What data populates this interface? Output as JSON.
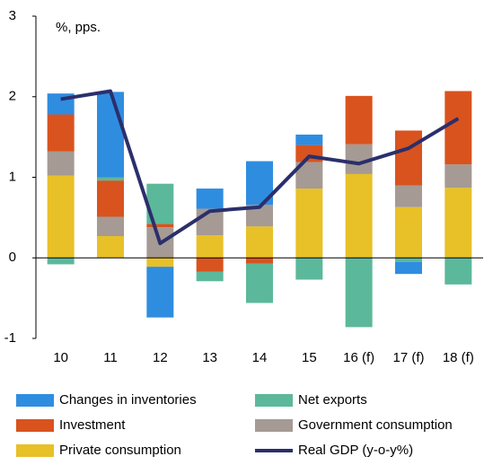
{
  "chart_data": {
    "type": "bar",
    "annotation": "%, pps.",
    "categories": [
      "10",
      "11",
      "12",
      "13",
      "14",
      "15",
      "16 (f)",
      "17 (f)",
      "18 (f)"
    ],
    "series": [
      {
        "name": "Private consumption",
        "color": "#e8c027",
        "values": [
          1.02,
          0.27,
          -0.11,
          0.28,
          0.39,
          0.86,
          1.04,
          0.63,
          0.87
        ]
      },
      {
        "name": "Government consumption",
        "color": "#a59a94",
        "values": [
          0.3,
          0.24,
          0.38,
          0.33,
          0.27,
          0.33,
          0.37,
          0.27,
          0.29
        ]
      },
      {
        "name": "Investment",
        "color": "#d9531e",
        "values": [
          0.46,
          0.45,
          0.04,
          -0.17,
          -0.07,
          0.21,
          0.6,
          0.68,
          0.91
        ]
      },
      {
        "name": "Net exports",
        "color": "#5cb89a",
        "values": [
          -0.08,
          0.04,
          0.5,
          -0.12,
          -0.49,
          -0.27,
          -0.86,
          -0.05,
          -0.33
        ]
      },
      {
        "name": "Changes in inventories",
        "color": "#2f8de0",
        "values": [
          0.26,
          1.06,
          -0.63,
          0.25,
          0.54,
          0.13,
          0.0,
          -0.15,
          0.0
        ]
      },
      {
        "name": "Real GDP (y-o-y%)",
        "color": "#2b2f6b",
        "type": "line",
        "values": [
          1.97,
          2.07,
          0.18,
          0.58,
          0.63,
          1.26,
          1.17,
          1.36,
          1.73
        ]
      }
    ],
    "ylim": [
      -1,
      3
    ],
    "yticks": [
      -1,
      0,
      1,
      2,
      3
    ]
  }
}
